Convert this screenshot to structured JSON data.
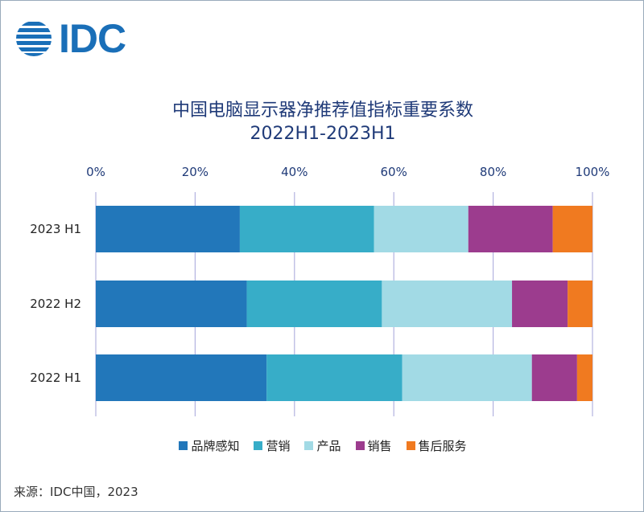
{
  "logo": {
    "text": "IDC"
  },
  "chart_data": {
    "type": "bar",
    "orientation": "horizontal",
    "stacked": true,
    "title": "中国电脑显示器净推荐值指标重要系数",
    "subtitle": "2022H1-2023H1",
    "categories": [
      "2023 H1",
      "2022 H2",
      "2022 H1"
    ],
    "series": [
      {
        "name": "品牌感知",
        "color": "#2277ba",
        "values": [
          29,
          30.4,
          34.4
        ]
      },
      {
        "name": "营销",
        "color": "#37adc8",
        "values": [
          27,
          27.2,
          27.3
        ]
      },
      {
        "name": "产品",
        "color": "#a2dae5",
        "values": [
          19,
          26.2,
          26.1
        ]
      },
      {
        "name": "销售",
        "color": "#9c3c8e",
        "values": [
          17,
          11.2,
          9.1
        ]
      },
      {
        "name": "售后服务",
        "color": "#f07a20",
        "values": [
          8,
          5.0,
          3.1
        ]
      }
    ],
    "xlim": [
      0,
      100
    ],
    "xticks": [
      "0%",
      "20%",
      "40%",
      "60%",
      "80%",
      "100%"
    ],
    "grid": true,
    "legend": "bottom"
  },
  "source": "来源：IDC中国，2023"
}
